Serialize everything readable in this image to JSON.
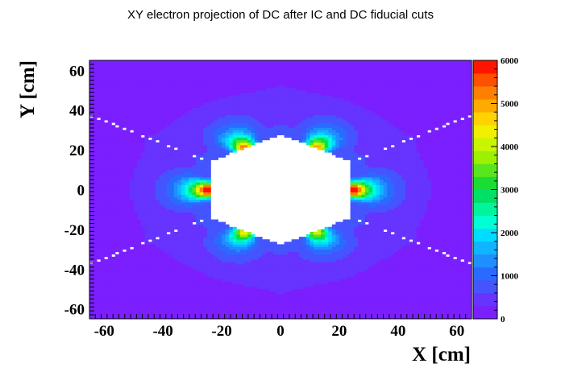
{
  "chart_data": {
    "type": "heatmap",
    "title": "XY electron projection of DC after IC and DC  fiducial cuts",
    "xlabel": "X [cm]",
    "ylabel": "Y [cm]",
    "xlim": [
      -65,
      65
    ],
    "ylim": [
      -65,
      65
    ],
    "x_ticks": [
      -60,
      -40,
      -20,
      0,
      20,
      40,
      60
    ],
    "y_ticks": [
      -60,
      -40,
      -20,
      0,
      20,
      40,
      60
    ],
    "colorbar": {
      "range": [
        0,
        6000
      ],
      "ticks": [
        0,
        1000,
        2000,
        3000,
        4000,
        5000,
        6000
      ],
      "palette": [
        "#7b1fff",
        "#6633ff",
        "#4455ff",
        "#2a6bff",
        "#1e8fff",
        "#11b4ff",
        "#00dcff",
        "#00ffd2",
        "#00f59a",
        "#00e066",
        "#19dd33",
        "#5ae61e",
        "#9cf000",
        "#c8f500",
        "#f0f000",
        "#ffd200",
        "#ffaa00",
        "#ff8000",
        "#ff5000",
        "#ff1400"
      ]
    },
    "sectors": [
      {
        "center_angle_deg": 0,
        "peak_value": 6000,
        "peak_x": 25,
        "peak_y": 0
      },
      {
        "center_angle_deg": 60,
        "peak_value": 4400,
        "peak_x": 12.5,
        "peak_y": 21.7
      },
      {
        "center_angle_deg": 120,
        "peak_value": 4600,
        "peak_x": -12.5,
        "peak_y": 21.7
      },
      {
        "center_angle_deg": 180,
        "peak_value": 6000,
        "peak_x": -25,
        "peak_y": 0
      },
      {
        "center_angle_deg": 240,
        "peak_value": 3800,
        "peak_x": -12.5,
        "peak_y": -21.7
      },
      {
        "center_angle_deg": 300,
        "peak_value": 3600,
        "peak_x": 12.5,
        "peak_y": -21.7
      }
    ]
  }
}
